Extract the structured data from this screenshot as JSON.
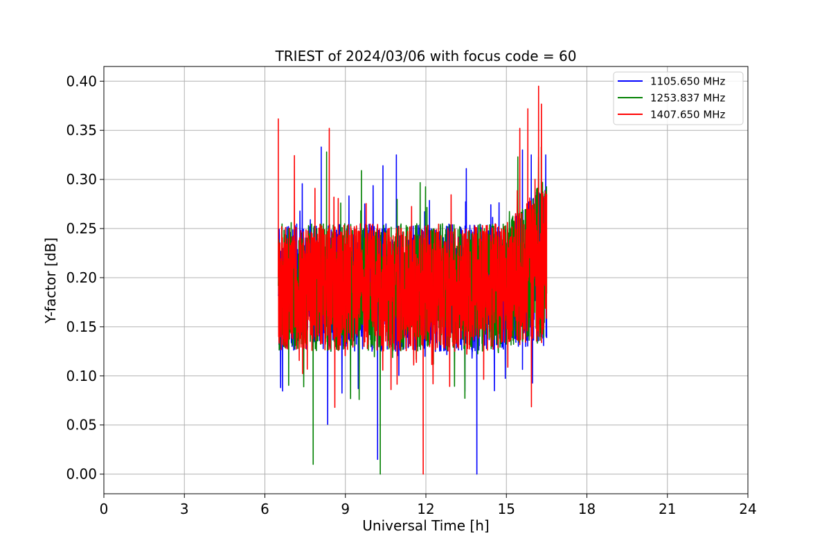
{
  "chart_data": {
    "type": "line",
    "title": "TRIEST of 2024/03/06 with focus code = 60",
    "xlabel": "Universal Time [h]",
    "ylabel": "Y-factor [dB]",
    "xlim": [
      0,
      24
    ],
    "ylim": [
      -0.02,
      0.415
    ],
    "xticks": [
      0,
      3,
      6,
      9,
      12,
      15,
      18,
      21,
      24
    ],
    "yticks": [
      0.0,
      0.05,
      0.1,
      0.15,
      0.2,
      0.25,
      0.3,
      0.35,
      0.4
    ],
    "xtick_labels": [
      "0",
      "3",
      "6",
      "9",
      "12",
      "15",
      "18",
      "21",
      "24"
    ],
    "ytick_labels": [
      "0.00",
      "0.05",
      "0.10",
      "0.15",
      "0.20",
      "0.25",
      "0.30",
      "0.35",
      "0.40"
    ],
    "grid": true,
    "legend_position": "top-right",
    "x_range_of_data": [
      6.5,
      16.5
    ],
    "series": [
      {
        "name": "1105.650 MHz",
        "color": "#0000ff",
        "approx_min": 0.0,
        "approx_max": 0.335,
        "peaks": [
          [
            8.1,
            0.333
          ],
          [
            10.4,
            0.314
          ],
          [
            13.9,
            0.0
          ],
          [
            10.2,
            0.015
          ],
          [
            15.6,
            0.33
          ]
        ]
      },
      {
        "name": "1253.837 MHz",
        "color": "#008000",
        "approx_min": 0.0,
        "approx_max": 0.333,
        "peaks": [
          [
            10.3,
            0.0
          ],
          [
            7.8,
            0.01
          ],
          [
            8.3,
            0.328
          ],
          [
            16.3,
            0.333
          ],
          [
            9.6,
            0.309
          ]
        ]
      },
      {
        "name": "1407.650 MHz",
        "color": "#ff0000",
        "approx_min": 0.0,
        "approx_max": 0.395,
        "peaks": [
          [
            6.5,
            0.362
          ],
          [
            8.4,
            0.352
          ],
          [
            11.9,
            0.0
          ],
          [
            16.2,
            0.395
          ],
          [
            15.8,
            0.372
          ],
          [
            15.5,
            0.352
          ]
        ]
      }
    ]
  }
}
